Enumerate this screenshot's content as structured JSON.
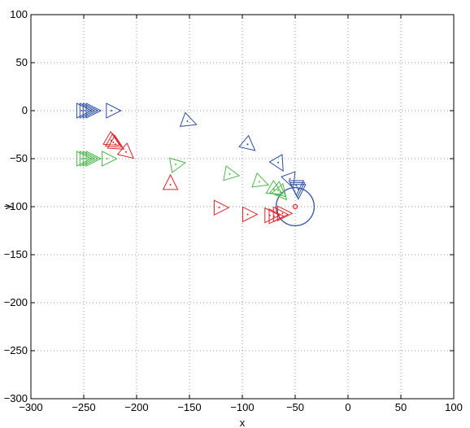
{
  "chart_data": {
    "type": "scatter",
    "title": "",
    "xlabel": "x",
    "ylabel": "y",
    "xlim": [
      -300,
      100
    ],
    "ylim": [
      -300,
      100
    ],
    "xticks": [
      -300,
      -250,
      -200,
      -150,
      -100,
      -50,
      0,
      50,
      100
    ],
    "yticks": [
      -300,
      -250,
      -200,
      -150,
      -100,
      -50,
      0,
      50,
      100
    ],
    "xtick_labels": [
      "−300",
      "−250",
      "−200",
      "−150",
      "−100",
      "−50",
      "0",
      "50",
      "100"
    ],
    "ytick_labels": [
      "−300",
      "−250",
      "−200",
      "−150",
      "−100",
      "−50",
      "0",
      "50",
      "100"
    ],
    "grid": true,
    "grid_style": "dotted",
    "marker": "triangle-with-center-dot",
    "colors": {
      "blue": "#2d4fa3",
      "red": "#e0242b",
      "green": "#4cb84c",
      "grid": "#999999"
    },
    "series": [
      {
        "color": "blue",
        "points": [
          {
            "x": -252,
            "y": 0,
            "angle": 0
          },
          {
            "x": -249,
            "y": 0,
            "angle": 0
          },
          {
            "x": -246,
            "y": 0,
            "angle": 0
          },
          {
            "x": -243,
            "y": 0,
            "angle": 0
          },
          {
            "x": -224,
            "y": 0,
            "angle": 0
          },
          {
            "x": -152,
            "y": -11,
            "angle": -20
          },
          {
            "x": -95,
            "y": -35,
            "angle": -40
          },
          {
            "x": -66,
            "y": -54,
            "angle": -60
          },
          {
            "x": -55,
            "y": -71,
            "angle": -70
          },
          {
            "x": -49,
            "y": -78,
            "angle": -90
          },
          {
            "x": -48,
            "y": -80,
            "angle": -90
          },
          {
            "x": -47,
            "y": -82,
            "angle": -90
          }
        ]
      },
      {
        "color": "red",
        "points": [
          {
            "x": -224,
            "y": -31,
            "angle": -30
          },
          {
            "x": -222,
            "y": -33,
            "angle": -30
          },
          {
            "x": -220,
            "y": -35,
            "angle": -30
          },
          {
            "x": -210,
            "y": -43,
            "angle": -40
          },
          {
            "x": -168,
            "y": -77,
            "angle": 90
          },
          {
            "x": -122,
            "y": -101,
            "angle": 0
          },
          {
            "x": -95,
            "y": -108,
            "angle": 0
          },
          {
            "x": -74,
            "y": -109,
            "angle": 0
          },
          {
            "x": -70,
            "y": -110,
            "angle": 0
          },
          {
            "x": -66,
            "y": -108,
            "angle": 0
          },
          {
            "x": -62,
            "y": -107,
            "angle": 0
          }
        ]
      },
      {
        "color": "green",
        "points": [
          {
            "x": -252,
            "y": -50,
            "angle": 0
          },
          {
            "x": -249,
            "y": -50,
            "angle": 0
          },
          {
            "x": -246,
            "y": -50,
            "angle": 0
          },
          {
            "x": -243,
            "y": -50,
            "angle": 0
          },
          {
            "x": -228,
            "y": -50,
            "angle": 0
          },
          {
            "x": -163,
            "y": -56,
            "angle": 10
          },
          {
            "x": -112,
            "y": -66,
            "angle": -10
          },
          {
            "x": -84,
            "y": -74,
            "angle": -20
          },
          {
            "x": -70,
            "y": -82,
            "angle": -30
          },
          {
            "x": -66,
            "y": -83,
            "angle": -40
          },
          {
            "x": -64,
            "y": -85,
            "angle": -50
          }
        ]
      }
    ],
    "circle": {
      "center": [
        -50,
        -100
      ],
      "radius": 18,
      "color": "blue"
    },
    "target": {
      "x": -50,
      "y": -100,
      "color": "red"
    }
  }
}
